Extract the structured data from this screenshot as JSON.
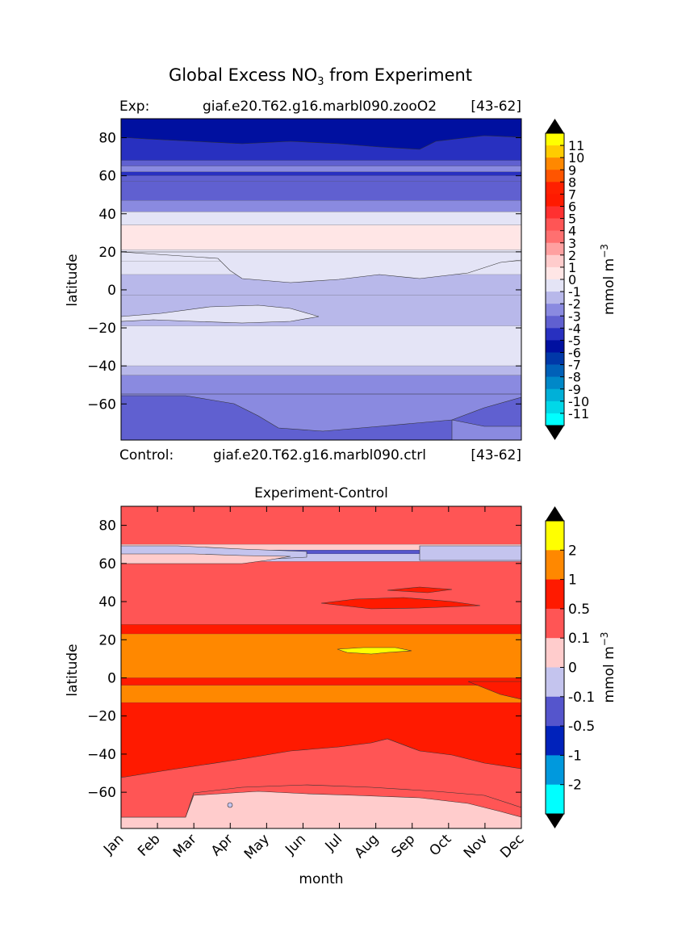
{
  "suptitle": "Global Excess NO",
  "suptitle_sub": "3",
  "suptitle_tail": " from Experiment",
  "colors": {
    "neg11": "#00ffff",
    "neg10": "#00d8e8",
    "neg9": "#00b0d8",
    "neg8": "#0088c8",
    "neg7": "#0060b8",
    "neg6": "#0038a8",
    "neg5": "#0010a0",
    "neg4": "#2830c0",
    "neg3": "#6060d0",
    "neg2": "#8a8ae0",
    "neg1": "#b8b8ea",
    "neg0": "#e4e4f6",
    "pos0": "#ffe6e6",
    "pos1": "#ffcccc",
    "pos2": "#ffa0a0",
    "pos3": "#ff7070",
    "pos4": "#ff5555",
    "pos5": "#ff3030",
    "pos6": "#ff1a00",
    "pos7": "#ff2000",
    "pos8": "#ff5500",
    "pos9": "#ff8800",
    "pos10": "#ffcc00",
    "pos11": "#ffff00",
    "diff_yellow": "#ffff00",
    "diff_orange": "#ff8800",
    "diff_red": "#ff1a00",
    "diff_lightred": "#ff5555",
    "diff_pink": "#ffcccc",
    "diff_lav": "#c4c4ee",
    "diff_blue1": "#5555cc",
    "diff_blue2": "#0022bb",
    "diff_blue3": "#0099dd",
    "diff_cyan": "#00ffff"
  },
  "chart_data": [
    {
      "type": "heatmap",
      "title_left": "Exp:",
      "title_center": "giaf.e20.T62.g16.marbl090.zooO2",
      "title_right": "[43-62]",
      "bottom_left": "Control:",
      "bottom_center": "giaf.e20.T62.g16.marbl090.ctrl",
      "bottom_right": "[43-62]",
      "ylabel": "latitude",
      "ylim": [
        -79,
        90
      ],
      "yticks": [
        80,
        60,
        40,
        20,
        0,
        -20,
        -40,
        -60
      ],
      "ytick_labels": [
        "80",
        "60",
        "40",
        "20",
        "0",
        "−20",
        "−40",
        "−60"
      ],
      "bands": [
        {
          "lat_top": 90,
          "lat_bot": 84,
          "color_key": "neg5"
        },
        {
          "lat_top": 84,
          "lat_bot": 68,
          "color_key": "neg4"
        },
        {
          "lat_top": 68,
          "lat_bot": 65,
          "color_key": "neg3"
        },
        {
          "lat_top": 65,
          "lat_bot": 62,
          "color_key": "neg2"
        },
        {
          "lat_top": 62,
          "lat_bot": 60,
          "color_key": "neg4"
        },
        {
          "lat_top": 60,
          "lat_bot": 57,
          "color_key": "neg3"
        },
        {
          "lat_top": 57,
          "lat_bot": 47,
          "color_key": "neg3"
        },
        {
          "lat_top": 47,
          "lat_bot": 41,
          "color_key": "neg2"
        },
        {
          "lat_top": 41,
          "lat_bot": 34,
          "color_key": "neg0"
        },
        {
          "lat_top": 34,
          "lat_bot": 21,
          "color_key": "pos0"
        },
        {
          "lat_top": 21,
          "lat_bot": 15,
          "color_key": "neg0"
        },
        {
          "lat_top": 15,
          "lat_bot": 8,
          "color_key": "neg0"
        },
        {
          "lat_top": 8,
          "lat_bot": -3,
          "color_key": "neg1"
        },
        {
          "lat_top": -3,
          "lat_bot": -19,
          "color_key": "neg1"
        },
        {
          "lat_top": -19,
          "lat_bot": -40,
          "color_key": "neg0"
        },
        {
          "lat_top": -40,
          "lat_bot": -45,
          "color_key": "neg1"
        },
        {
          "lat_top": -45,
          "lat_bot": -55,
          "color_key": "neg2"
        },
        {
          "lat_top": -55,
          "lat_bot": -79,
          "color_key": "neg3"
        }
      ],
      "colorbar": {
        "label": "mmol m",
        "label_sup": "−3",
        "levels": [
          "11",
          "10",
          "9",
          "8",
          "7",
          "6",
          "5",
          "4",
          "3",
          "2",
          "1",
          "0",
          "-1",
          "-2",
          "-3",
          "-4",
          "-5",
          "-6",
          "-7",
          "-8",
          "-9",
          "-10",
          "-11"
        ],
        "segment_color_keys": [
          "pos11",
          "pos10",
          "pos9",
          "pos8",
          "pos7",
          "pos6",
          "pos5",
          "pos4",
          "pos3",
          "pos2",
          "pos1",
          "pos0",
          "neg0",
          "neg1",
          "neg2",
          "neg3",
          "neg4",
          "neg5",
          "neg6",
          "neg7",
          "neg8",
          "neg9",
          "neg10",
          "neg11"
        ]
      }
    },
    {
      "type": "heatmap",
      "title": "Experiment-Control",
      "xlabel": "month",
      "ylabel": "latitude",
      "ylim": [
        -79,
        90
      ],
      "categories": [
        "Jan",
        "Feb",
        "Mar",
        "Apr",
        "May",
        "Jun",
        "Jul",
        "Aug",
        "Sep",
        "Oct",
        "Nov",
        "Dec"
      ],
      "yticks": [
        80,
        60,
        40,
        20,
        0,
        -20,
        -40,
        -60
      ],
      "ytick_labels": [
        "80",
        "60",
        "40",
        "20",
        "0",
        "−20",
        "−40",
        "−60"
      ],
      "bands": [
        {
          "lat_top": 90,
          "lat_bot": 70,
          "color_key": "diff_lightred"
        },
        {
          "lat_top": 70,
          "lat_bot": 67,
          "color_key": "diff_pink"
        },
        {
          "lat_top": 67,
          "lat_bot": 65,
          "color_key": "diff_blue1"
        },
        {
          "lat_top": 65,
          "lat_bot": 61,
          "color_key": "diff_lav"
        },
        {
          "lat_top": 61,
          "lat_bot": 28,
          "color_key": "diff_lightred"
        },
        {
          "lat_top": 28,
          "lat_bot": 23,
          "color_key": "diff_red"
        },
        {
          "lat_top": 23,
          "lat_bot": 0,
          "color_key": "diff_orange"
        },
        {
          "lat_top": 0,
          "lat_bot": -4,
          "color_key": "diff_red"
        },
        {
          "lat_top": -4,
          "lat_bot": -13,
          "color_key": "diff_orange"
        },
        {
          "lat_top": -13,
          "lat_bot": -52,
          "color_key": "diff_red"
        },
        {
          "lat_top": -52,
          "lat_bot": -79,
          "color_key": "diff_lightred"
        }
      ],
      "colorbar": {
        "label": "mmol m",
        "label_sup": "−3",
        "levels": [
          "2",
          "1",
          "0.5",
          "0.1",
          "0",
          "-0.1",
          "-0.5",
          "-1",
          "-2"
        ],
        "segment_color_keys": [
          "diff_yellow",
          "diff_orange",
          "diff_red",
          "diff_lightred",
          "diff_pink",
          "diff_lav",
          "diff_blue1",
          "diff_blue2",
          "diff_blue3",
          "diff_cyan"
        ]
      }
    }
  ]
}
